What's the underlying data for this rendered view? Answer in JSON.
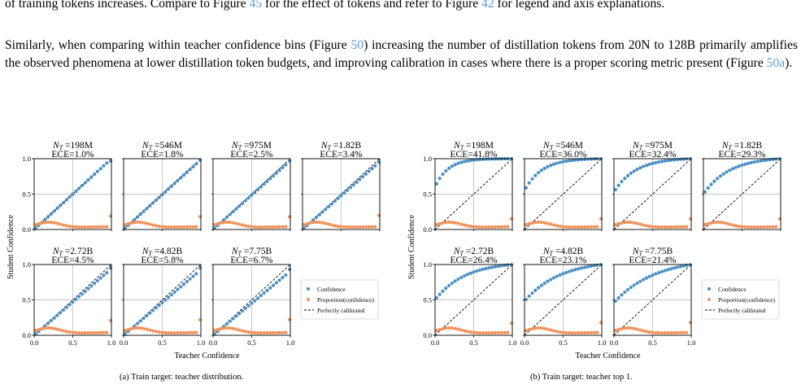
{
  "text": {
    "p1_a": "of training tokens increases. Compare to Figure ",
    "p1_ref1": "45",
    "p1_b": " for the effect of tokens and refer to Figure ",
    "p1_ref2": "42",
    "p1_c": " for legend and axis explanations.",
    "p2_a": "Similarly, when comparing within teacher confidence bins (Figure ",
    "p2_ref1": "50",
    "p2_b": ") increasing the number of distillation tokens from 20N to 128B primarily amplifies the observed phenomena at lower distillation token budgets, and improving calibration in cases where there is a proper scoring metric present (Figure ",
    "p2_ref2": "50a",
    "p2_c": ")."
  },
  "colors": {
    "confidence": "#4a90c4",
    "proportion": "#f0925a",
    "diagonal": "#000000",
    "link": "#5b9bd5"
  },
  "figure": {
    "xlabel": "Teacher Confidence",
    "ylabel": "Student Confidence",
    "legend": [
      "Confidence",
      "Proportion(confidence)",
      "Perfectly calibrated"
    ]
  },
  "chart_data": [
    {
      "type": "scatter",
      "caption": "(a) Train target: teacher distribution.",
      "xlabel": "Teacher Confidence",
      "ylabel": "Student Confidence",
      "xlim": [
        0,
        1
      ],
      "ylim": [
        0,
        1
      ],
      "xticks": [
        "0.0",
        "0.5",
        "1.0"
      ],
      "yticks": [
        "0.0",
        "0.5",
        "1.0"
      ],
      "grid": true,
      "legend_position": "right",
      "subplots": [
        {
          "title_name": "198M",
          "ece": "ECE=1.0%",
          "curve": {
            "a": 0.0,
            "scale": 1.0,
            "lastY": 0.97
          },
          "prop_end": 0.19
        },
        {
          "title_name": "546M",
          "ece": "ECE=1.8%",
          "curve": {
            "a": 0.0,
            "scale": 0.985,
            "lastY": 0.98
          },
          "prop_end": 0.18
        },
        {
          "title_name": "975M",
          "ece": "ECE=2.5%",
          "curve": {
            "a": 0.0,
            "scale": 0.97,
            "lastY": 0.97
          },
          "prop_end": 0.18
        },
        {
          "title_name": "1.82B",
          "ece": "ECE=3.4%",
          "curve": {
            "a": 0.0,
            "scale": 0.955,
            "lastY": 0.95
          },
          "prop_end": 0.2
        },
        {
          "title_name": "2.72B",
          "ece": "ECE=4.5%",
          "curve": {
            "a": 0.0,
            "scale": 0.94,
            "lastY": 0.95
          },
          "prop_end": 0.21
        },
        {
          "title_name": "4.82B",
          "ece": "ECE=5.8%",
          "curve": {
            "a": 0.0,
            "scale": 0.925,
            "lastY": 0.95
          },
          "prop_end": 0.22
        },
        {
          "title_name": "7.75B",
          "ece": "ECE=6.7%",
          "curve": {
            "a": 0.0,
            "scale": 0.905,
            "lastY": 0.93
          },
          "prop_end": 0.22
        }
      ]
    },
    {
      "type": "scatter",
      "caption": "(b) Train target: teacher top 1.",
      "xlabel": "Teacher Confidence",
      "ylabel": "Student Confidence",
      "xlim": [
        0,
        1
      ],
      "ylim": [
        0,
        1
      ],
      "xticks": [
        "0.0",
        "0.5",
        "1.0"
      ],
      "yticks": [
        "0.0",
        "0.5",
        "1.0"
      ],
      "grid": true,
      "legend_position": "right",
      "subplots": [
        {
          "title_name": "198M",
          "ece": "ECE=41.8%",
          "curve": {
            "a": 0.6,
            "k": 6.0
          },
          "prop_end": 0.15
        },
        {
          "title_name": "546M",
          "ece": "ECE=36.0%",
          "curve": {
            "a": 0.55,
            "k": 4.5
          },
          "prop_end": 0.15
        },
        {
          "title_name": "975M",
          "ece": "ECE=32.4%",
          "curve": {
            "a": 0.53,
            "k": 3.6
          },
          "prop_end": 0.15
        },
        {
          "title_name": "1.82B",
          "ece": "ECE=29.3%",
          "curve": {
            "a": 0.5,
            "k": 3.0
          },
          "prop_end": 0.15
        },
        {
          "title_name": "2.72B",
          "ece": "ECE=26.4%",
          "curve": {
            "a": 0.5,
            "k": 2.6
          },
          "prop_end": 0.17
        },
        {
          "title_name": "4.82B",
          "ece": "ECE=23.1%",
          "curve": {
            "a": 0.48,
            "k": 2.2
          },
          "prop_end": 0.18
        },
        {
          "title_name": "7.75B",
          "ece": "ECE=21.4%",
          "curve": {
            "a": 0.46,
            "k": 1.9
          },
          "prop_end": 0.18
        }
      ]
    }
  ]
}
